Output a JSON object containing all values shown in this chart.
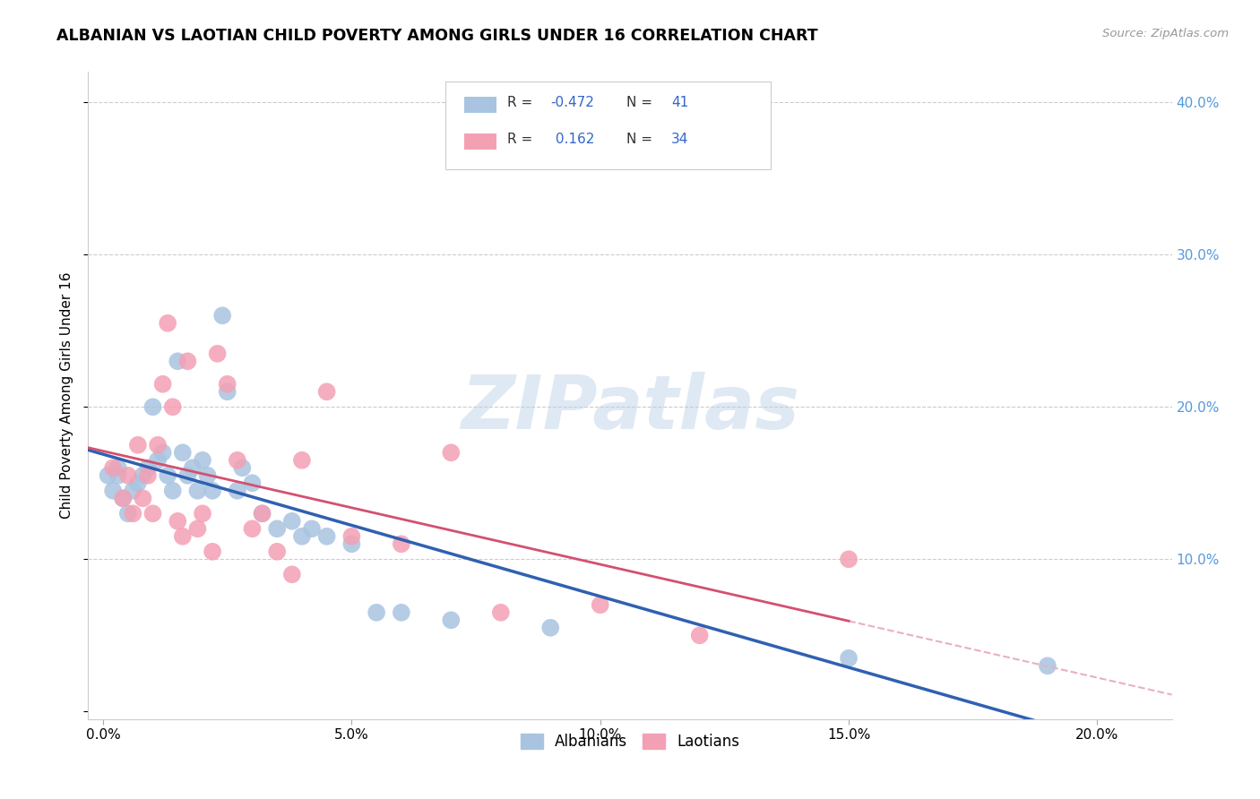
{
  "title": "ALBANIAN VS LAOTIAN CHILD POVERTY AMONG GIRLS UNDER 16 CORRELATION CHART",
  "source": "Source: ZipAtlas.com",
  "ylabel": "Child Poverty Among Girls Under 16",
  "xlabel_ticks": [
    "0.0%",
    "5.0%",
    "10.0%",
    "15.0%",
    "20.0%"
  ],
  "xlabel_vals": [
    0.0,
    0.05,
    0.1,
    0.15,
    0.2
  ],
  "ylim": [
    -0.005,
    0.42
  ],
  "xlim": [
    -0.003,
    0.215
  ],
  "albanian_color": "#a8c4e0",
  "laotian_color": "#f4a0b4",
  "albanian_line_color": "#3060b0",
  "laotian_line_color": "#d45070",
  "laotian_dash_color": "#e8b0c0",
  "watermark": "ZIPatlas",
  "albanian_x": [
    0.001,
    0.002,
    0.003,
    0.003,
    0.004,
    0.005,
    0.006,
    0.007,
    0.008,
    0.009,
    0.01,
    0.011,
    0.012,
    0.013,
    0.014,
    0.015,
    0.016,
    0.017,
    0.018,
    0.019,
    0.02,
    0.021,
    0.022,
    0.024,
    0.025,
    0.027,
    0.028,
    0.03,
    0.032,
    0.035,
    0.038,
    0.04,
    0.042,
    0.045,
    0.05,
    0.055,
    0.06,
    0.07,
    0.09,
    0.15,
    0.19
  ],
  "albanian_y": [
    0.155,
    0.145,
    0.155,
    0.16,
    0.14,
    0.13,
    0.145,
    0.15,
    0.155,
    0.16,
    0.2,
    0.165,
    0.17,
    0.155,
    0.145,
    0.23,
    0.17,
    0.155,
    0.16,
    0.145,
    0.165,
    0.155,
    0.145,
    0.26,
    0.21,
    0.145,
    0.16,
    0.15,
    0.13,
    0.12,
    0.125,
    0.115,
    0.12,
    0.115,
    0.11,
    0.065,
    0.065,
    0.06,
    0.055,
    0.035,
    0.03
  ],
  "laotian_x": [
    0.002,
    0.004,
    0.005,
    0.006,
    0.007,
    0.008,
    0.009,
    0.01,
    0.011,
    0.012,
    0.013,
    0.014,
    0.015,
    0.016,
    0.017,
    0.019,
    0.02,
    0.022,
    0.023,
    0.025,
    0.027,
    0.03,
    0.032,
    0.035,
    0.038,
    0.04,
    0.045,
    0.05,
    0.06,
    0.07,
    0.08,
    0.1,
    0.12,
    0.15
  ],
  "laotian_y": [
    0.16,
    0.14,
    0.155,
    0.13,
    0.175,
    0.14,
    0.155,
    0.13,
    0.175,
    0.215,
    0.255,
    0.2,
    0.125,
    0.115,
    0.23,
    0.12,
    0.13,
    0.105,
    0.235,
    0.215,
    0.165,
    0.12,
    0.13,
    0.105,
    0.09,
    0.165,
    0.21,
    0.115,
    0.11,
    0.17,
    0.065,
    0.07,
    0.05,
    0.1
  ],
  "background_color": "#ffffff",
  "grid_color": "#cccccc",
  "legend_line1": "R = -0.472",
  "legend_n1": "N = 41",
  "legend_line2": "R =  0.162",
  "legend_n2": "N = 34",
  "legend_bottom": [
    "Albanians",
    "Laotians"
  ]
}
